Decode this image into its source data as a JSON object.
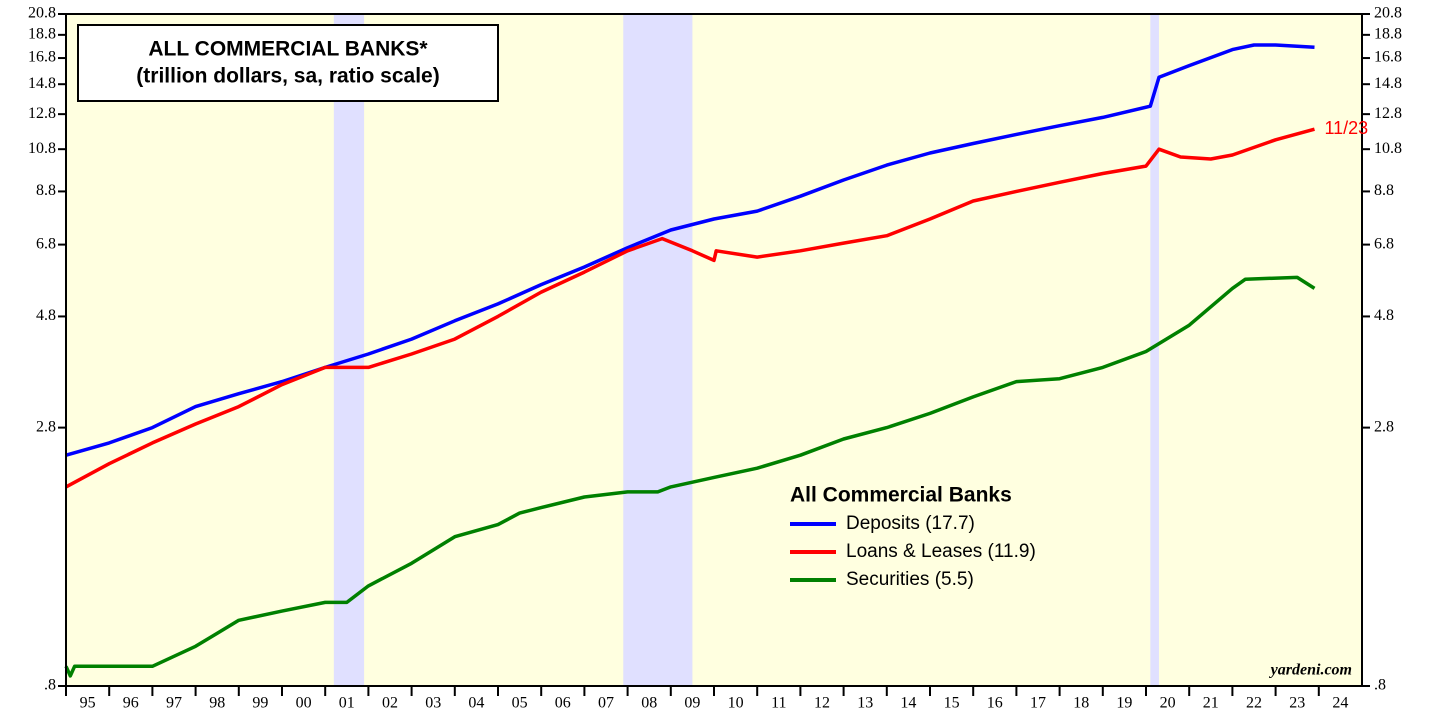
{
  "chart_data": {
    "type": "line",
    "title": [
      "ALL COMMERCIAL BANKS*",
      "(trillion dollars, sa, ratio scale)"
    ],
    "legend_title": "All Commercial Banks",
    "annotation": {
      "text": "11/23",
      "color": "#ff0000"
    },
    "source": "yardeni.com",
    "log_scale": true,
    "xlim": [
      1995,
      2025
    ],
    "xticks": [
      {
        "value": 1995.5,
        "label": "95"
      },
      {
        "value": 1996.5,
        "label": "96"
      },
      {
        "value": 1997.5,
        "label": "97"
      },
      {
        "value": 1998.5,
        "label": "98"
      },
      {
        "value": 1999.5,
        "label": "99"
      },
      {
        "value": 2000.5,
        "label": "00"
      },
      {
        "value": 2001.5,
        "label": "01"
      },
      {
        "value": 2002.5,
        "label": "02"
      },
      {
        "value": 2003.5,
        "label": "03"
      },
      {
        "value": 2004.5,
        "label": "04"
      },
      {
        "value": 2005.5,
        "label": "05"
      },
      {
        "value": 2006.5,
        "label": "06"
      },
      {
        "value": 2007.5,
        "label": "07"
      },
      {
        "value": 2008.5,
        "label": "08"
      },
      {
        "value": 2009.5,
        "label": "09"
      },
      {
        "value": 2010.5,
        "label": "10"
      },
      {
        "value": 2011.5,
        "label": "11"
      },
      {
        "value": 2012.5,
        "label": "12"
      },
      {
        "value": 2013.5,
        "label": "13"
      },
      {
        "value": 2014.5,
        "label": "14"
      },
      {
        "value": 2015.5,
        "label": "15"
      },
      {
        "value": 2016.5,
        "label": "16"
      },
      {
        "value": 2017.5,
        "label": "17"
      },
      {
        "value": 2018.5,
        "label": "18"
      },
      {
        "value": 2019.5,
        "label": "19"
      },
      {
        "value": 2020.5,
        "label": "20"
      },
      {
        "value": 2021.5,
        "label": "21"
      },
      {
        "value": 2022.5,
        "label": "22"
      },
      {
        "value": 2023.5,
        "label": "23"
      },
      {
        "value": 2024.5,
        "label": "24"
      }
    ],
    "ylim": [
      0.8,
      20.8
    ],
    "yticks": [
      {
        "value": 0.8,
        "label": ".8"
      },
      2.8,
      4.8,
      6.8,
      8.8,
      10.8,
      12.8,
      14.8,
      16.8,
      18.8,
      20.8
    ],
    "recessions": [
      [
        2001.2,
        2001.9
      ],
      [
        2007.9,
        2009.5
      ],
      [
        2020.1,
        2020.3
      ]
    ],
    "series": [
      {
        "name": "Deposits (17.7)",
        "color": "#0000ff",
        "x": [
          1995,
          1996,
          1997,
          1998,
          1999,
          2000,
          2001,
          2002,
          2003,
          2004,
          2005,
          2006,
          2007,
          2008,
          2009,
          2010,
          2011,
          2012,
          2013,
          2014,
          2015,
          2016,
          2017,
          2018,
          2019,
          2020.1,
          2020.3,
          2021,
          2022,
          2022.5,
          2023,
          2023.9
        ],
        "values": [
          2.45,
          2.6,
          2.8,
          3.1,
          3.3,
          3.5,
          3.75,
          4.0,
          4.3,
          4.7,
          5.1,
          5.6,
          6.1,
          6.7,
          7.3,
          7.7,
          8.0,
          8.6,
          9.3,
          10.0,
          10.6,
          11.1,
          11.6,
          12.1,
          12.6,
          13.3,
          15.3,
          16.2,
          17.5,
          17.9,
          17.9,
          17.7
        ]
      },
      {
        "name": "Loans & Leases (11.9)",
        "color": "#ff0000",
        "x": [
          1995,
          1996,
          1997,
          1998,
          1999,
          2000,
          2001,
          2002,
          2003,
          2004,
          2005,
          2006,
          2007,
          2008,
          2008.8,
          2009.5,
          2010,
          2010.05,
          2011,
          2012,
          2013,
          2014,
          2015,
          2016,
          2017,
          2018,
          2019,
          2020,
          2020.3,
          2020.8,
          2021.5,
          2022,
          2023,
          2023.9
        ],
        "values": [
          2.1,
          2.35,
          2.6,
          2.85,
          3.1,
          3.45,
          3.75,
          3.75,
          4.0,
          4.3,
          4.8,
          5.4,
          5.95,
          6.6,
          7.0,
          6.6,
          6.3,
          6.6,
          6.4,
          6.6,
          6.85,
          7.1,
          7.7,
          8.4,
          8.8,
          9.2,
          9.6,
          9.95,
          10.8,
          10.4,
          10.3,
          10.5,
          11.3,
          11.9
        ]
      },
      {
        "name": "Securities (5.5)",
        "color": "#008000",
        "x": [
          1995,
          1995.1,
          1995.2,
          1996,
          1997,
          1998,
          1999,
          2000,
          2001,
          2001.5,
          2002,
          2003,
          2004,
          2005,
          2005.5,
          2006,
          2007,
          2008,
          2008.7,
          2009,
          2010,
          2011,
          2012,
          2013,
          2014,
          2015,
          2016,
          2017,
          2018,
          2019,
          2020,
          2021,
          2022,
          2022.3,
          2023.5,
          2023.9
        ],
        "values": [
          0.88,
          0.84,
          0.88,
          0.88,
          0.88,
          0.97,
          1.1,
          1.15,
          1.2,
          1.2,
          1.3,
          1.45,
          1.65,
          1.75,
          1.85,
          1.9,
          2.0,
          2.05,
          2.05,
          2.1,
          2.2,
          2.3,
          2.45,
          2.65,
          2.8,
          3.0,
          3.25,
          3.5,
          3.55,
          3.75,
          4.05,
          4.6,
          5.5,
          5.75,
          5.8,
          5.5
        ]
      }
    ]
  }
}
